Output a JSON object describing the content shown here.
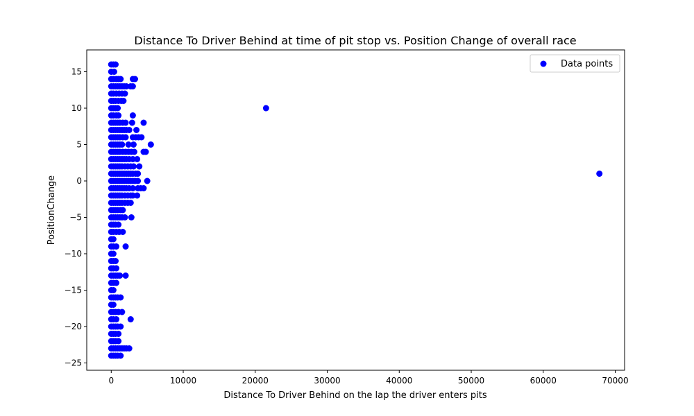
{
  "chart_data": {
    "type": "scatter",
    "title": "Distance To Driver Behind at time of pit stop vs. Position Change of overall race",
    "xlabel": "Distance To Driver Behind on the lap the driver enters pits",
    "ylabel": "PositionChange",
    "xlim": [
      -3400,
      71300
    ],
    "ylim": [
      -26.0,
      18.0
    ],
    "xticks": [
      0,
      10000,
      20000,
      30000,
      40000,
      50000,
      60000,
      70000
    ],
    "xtick_labels": [
      "0",
      "10000",
      "20000",
      "30000",
      "40000",
      "50000",
      "60000",
      "70000"
    ],
    "yticks": [
      -25,
      -20,
      -15,
      -10,
      -5,
      0,
      5,
      10,
      15
    ],
    "ytick_labels": [
      "−25",
      "−20",
      "−15",
      "−10",
      "−5",
      "0",
      "5",
      "10",
      "15"
    ],
    "grid": false,
    "legend_position": "top-right",
    "series": [
      {
        "name": "Data points",
        "color": "#0000ff",
        "marker": "circle",
        "points": [
          [
            0,
            16
          ],
          [
            300,
            16
          ],
          [
            600,
            16
          ],
          [
            0,
            15
          ],
          [
            400,
            15
          ],
          [
            0,
            14
          ],
          [
            300,
            14
          ],
          [
            700,
            14
          ],
          [
            1000,
            14
          ],
          [
            1300,
            14
          ],
          [
            3000,
            14
          ],
          [
            3300,
            14
          ],
          [
            0,
            13
          ],
          [
            300,
            13
          ],
          [
            600,
            13
          ],
          [
            900,
            13
          ],
          [
            1200,
            13
          ],
          [
            1500,
            13
          ],
          [
            1800,
            13
          ],
          [
            2100,
            13
          ],
          [
            2700,
            13
          ],
          [
            3000,
            13
          ],
          [
            0,
            12
          ],
          [
            300,
            12
          ],
          [
            700,
            12
          ],
          [
            1100,
            12
          ],
          [
            1500,
            12
          ],
          [
            1900,
            12
          ],
          [
            0,
            11
          ],
          [
            300,
            11
          ],
          [
            600,
            11
          ],
          [
            1000,
            11
          ],
          [
            1400,
            11
          ],
          [
            1700,
            11
          ],
          [
            0,
            10
          ],
          [
            300,
            10
          ],
          [
            600,
            10
          ],
          [
            900,
            10
          ],
          [
            21500,
            10
          ],
          [
            0,
            9
          ],
          [
            300,
            9
          ],
          [
            700,
            9
          ],
          [
            1000,
            9
          ],
          [
            3000,
            9
          ],
          [
            0,
            8
          ],
          [
            300,
            8
          ],
          [
            600,
            8
          ],
          [
            900,
            8
          ],
          [
            1200,
            8
          ],
          [
            1600,
            8
          ],
          [
            2000,
            8
          ],
          [
            2900,
            8
          ],
          [
            4500,
            8
          ],
          [
            0,
            7
          ],
          [
            300,
            7
          ],
          [
            600,
            7
          ],
          [
            900,
            7
          ],
          [
            1200,
            7
          ],
          [
            1500,
            7
          ],
          [
            1800,
            7
          ],
          [
            2100,
            7
          ],
          [
            2500,
            7
          ],
          [
            3500,
            7
          ],
          [
            0,
            6
          ],
          [
            300,
            6
          ],
          [
            600,
            6
          ],
          [
            900,
            6
          ],
          [
            1200,
            6
          ],
          [
            1600,
            6
          ],
          [
            2000,
            6
          ],
          [
            3000,
            6
          ],
          [
            3400,
            6
          ],
          [
            3800,
            6
          ],
          [
            4200,
            6
          ],
          [
            0,
            5
          ],
          [
            300,
            5
          ],
          [
            600,
            5
          ],
          [
            900,
            5
          ],
          [
            1200,
            5
          ],
          [
            1500,
            5
          ],
          [
            2400,
            5
          ],
          [
            3100,
            5
          ],
          [
            5500,
            5
          ],
          [
            0,
            4
          ],
          [
            300,
            4
          ],
          [
            600,
            4
          ],
          [
            900,
            4
          ],
          [
            1200,
            4
          ],
          [
            1600,
            4
          ],
          [
            2000,
            4
          ],
          [
            2400,
            4
          ],
          [
            2800,
            4
          ],
          [
            3200,
            4
          ],
          [
            4500,
            4
          ],
          [
            4800,
            4
          ],
          [
            0,
            3
          ],
          [
            300,
            3
          ],
          [
            600,
            3
          ],
          [
            900,
            3
          ],
          [
            1200,
            3
          ],
          [
            1500,
            3
          ],
          [
            1800,
            3
          ],
          [
            2100,
            3
          ],
          [
            2500,
            3
          ],
          [
            3000,
            3
          ],
          [
            3600,
            3
          ],
          [
            0,
            2
          ],
          [
            300,
            2
          ],
          [
            600,
            2
          ],
          [
            900,
            2
          ],
          [
            1200,
            2
          ],
          [
            1500,
            2
          ],
          [
            1900,
            2
          ],
          [
            2300,
            2
          ],
          [
            2700,
            2
          ],
          [
            3100,
            2
          ],
          [
            3900,
            2
          ],
          [
            0,
            1
          ],
          [
            300,
            1
          ],
          [
            600,
            1
          ],
          [
            900,
            1
          ],
          [
            1200,
            1
          ],
          [
            1500,
            1
          ],
          [
            1800,
            1
          ],
          [
            2100,
            1
          ],
          [
            2400,
            1
          ],
          [
            2700,
            1
          ],
          [
            3000,
            1
          ],
          [
            3400,
            1
          ],
          [
            3700,
            1
          ],
          [
            0,
            0
          ],
          [
            300,
            0
          ],
          [
            600,
            0
          ],
          [
            900,
            0
          ],
          [
            1200,
            0
          ],
          [
            1500,
            0
          ],
          [
            1800,
            0
          ],
          [
            2100,
            0
          ],
          [
            2400,
            0
          ],
          [
            2700,
            0
          ],
          [
            3000,
            0
          ],
          [
            3300,
            0
          ],
          [
            3700,
            0
          ],
          [
            5000,
            0
          ],
          [
            67800,
            1
          ],
          [
            0,
            -1
          ],
          [
            300,
            -1
          ],
          [
            600,
            -1
          ],
          [
            900,
            -1
          ],
          [
            1200,
            -1
          ],
          [
            1500,
            -1
          ],
          [
            1800,
            -1
          ],
          [
            2100,
            -1
          ],
          [
            2500,
            -1
          ],
          [
            3000,
            -1
          ],
          [
            3700,
            -1
          ],
          [
            4100,
            -1
          ],
          [
            4500,
            -1
          ],
          [
            0,
            -2
          ],
          [
            300,
            -2
          ],
          [
            600,
            -2
          ],
          [
            900,
            -2
          ],
          [
            1200,
            -2
          ],
          [
            1500,
            -2
          ],
          [
            1900,
            -2
          ],
          [
            2300,
            -2
          ],
          [
            2700,
            -2
          ],
          [
            3000,
            -2
          ],
          [
            3600,
            -2
          ],
          [
            0,
            -3
          ],
          [
            300,
            -3
          ],
          [
            600,
            -3
          ],
          [
            900,
            -3
          ],
          [
            1200,
            -3
          ],
          [
            1500,
            -3
          ],
          [
            1900,
            -3
          ],
          [
            2300,
            -3
          ],
          [
            2700,
            -3
          ],
          [
            0,
            -4
          ],
          [
            300,
            -4
          ],
          [
            600,
            -4
          ],
          [
            900,
            -4
          ],
          [
            1300,
            -4
          ],
          [
            1600,
            -4
          ],
          [
            0,
            -5
          ],
          [
            300,
            -5
          ],
          [
            600,
            -5
          ],
          [
            900,
            -5
          ],
          [
            1200,
            -5
          ],
          [
            1500,
            -5
          ],
          [
            1900,
            -5
          ],
          [
            2800,
            -5
          ],
          [
            0,
            -6
          ],
          [
            300,
            -6
          ],
          [
            600,
            -6
          ],
          [
            1000,
            -6
          ],
          [
            0,
            -7
          ],
          [
            300,
            -7
          ],
          [
            700,
            -7
          ],
          [
            1100,
            -7
          ],
          [
            1600,
            -7
          ],
          [
            0,
            -8
          ],
          [
            300,
            -8
          ],
          [
            0,
            -9
          ],
          [
            300,
            -9
          ],
          [
            700,
            -9
          ],
          [
            2000,
            -9
          ],
          [
            0,
            -10
          ],
          [
            300,
            -10
          ],
          [
            0,
            -11
          ],
          [
            300,
            -11
          ],
          [
            600,
            -11
          ],
          [
            0,
            -12
          ],
          [
            300,
            -12
          ],
          [
            700,
            -12
          ],
          [
            0,
            -13
          ],
          [
            300,
            -13
          ],
          [
            600,
            -13
          ],
          [
            900,
            -13
          ],
          [
            1200,
            -13
          ],
          [
            2000,
            -13
          ],
          [
            0,
            -14
          ],
          [
            300,
            -14
          ],
          [
            700,
            -14
          ],
          [
            0,
            -15
          ],
          [
            300,
            -15
          ],
          [
            0,
            -16
          ],
          [
            300,
            -16
          ],
          [
            600,
            -16
          ],
          [
            900,
            -16
          ],
          [
            1300,
            -16
          ],
          [
            0,
            -17
          ],
          [
            300,
            -17
          ],
          [
            0,
            -18
          ],
          [
            300,
            -18
          ],
          [
            600,
            -18
          ],
          [
            1000,
            -18
          ],
          [
            1500,
            -18
          ],
          [
            0,
            -19
          ],
          [
            300,
            -19
          ],
          [
            700,
            -19
          ],
          [
            2700,
            -19
          ],
          [
            0,
            -20
          ],
          [
            300,
            -20
          ],
          [
            600,
            -20
          ],
          [
            900,
            -20
          ],
          [
            1300,
            -20
          ],
          [
            0,
            -21
          ],
          [
            300,
            -21
          ],
          [
            600,
            -21
          ],
          [
            1000,
            -21
          ],
          [
            0,
            -22
          ],
          [
            300,
            -22
          ],
          [
            600,
            -22
          ],
          [
            1000,
            -22
          ],
          [
            0,
            -23
          ],
          [
            300,
            -23
          ],
          [
            600,
            -23
          ],
          [
            900,
            -23
          ],
          [
            1200,
            -23
          ],
          [
            1500,
            -23
          ],
          [
            1800,
            -23
          ],
          [
            2100,
            -23
          ],
          [
            2500,
            -23
          ],
          [
            0,
            -24
          ],
          [
            300,
            -24
          ],
          [
            600,
            -24
          ],
          [
            900,
            -24
          ],
          [
            1300,
            -24
          ]
        ]
      }
    ]
  }
}
